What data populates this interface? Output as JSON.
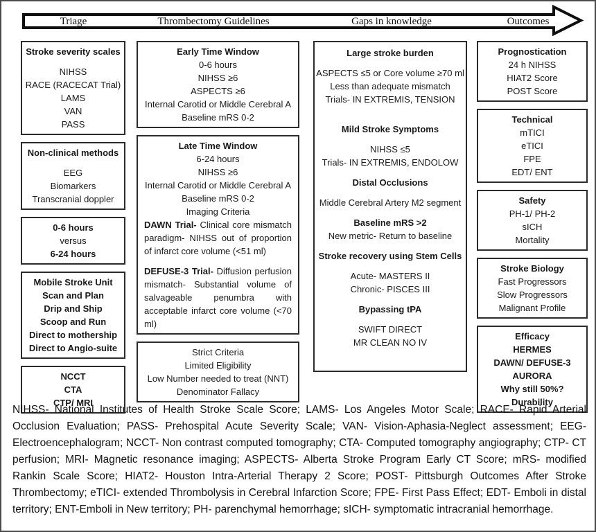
{
  "colors": {
    "ink": "#1a1a1a",
    "border": "#2b2b2b"
  },
  "header": {
    "labels": [
      "Triage",
      "Thrombectomy Guidelines",
      "Gaps in knowledge",
      "Outcomes"
    ]
  },
  "columns": [
    {
      "id": "triage",
      "boxes": [
        {
          "name": "stroke-severity-scales-box",
          "lines": [
            {
              "t": "Stroke severity scales",
              "b": true
            },
            {
              "t": "NIHSS",
              "g": 1
            },
            {
              "t": "RACE (RACECAT Trial)"
            },
            {
              "t": "LAMS"
            },
            {
              "t": "VAN"
            },
            {
              "t": "PASS"
            }
          ]
        },
        {
          "name": "non-clinical-methods-box",
          "lines": [
            {
              "t": "Non-clinical methods",
              "b": true
            },
            {
              "t": "EEG",
              "g": 1
            },
            {
              "t": "Biomarkers"
            },
            {
              "t": "Transcranial doppler"
            }
          ]
        },
        {
          "name": "time-window-comparison-box",
          "lines": [
            {
              "t": "0-6 hours",
              "b": true
            },
            {
              "t": "versus"
            },
            {
              "t": "6-24 hours",
              "b": true
            }
          ]
        },
        {
          "name": "transport-strategies-box",
          "lines": [
            {
              "t": "Mobile Stroke Unit",
              "b": true
            },
            {
              "t": "Scan and Plan",
              "b": true
            },
            {
              "t": "Drip and Ship",
              "b": true
            },
            {
              "t": "Scoop and Run",
              "b": true
            },
            {
              "t": "Direct to mothership",
              "b": true
            },
            {
              "t": "Direct to Angio-suite",
              "b": true
            }
          ]
        },
        {
          "name": "imaging-modalities-box",
          "lines": [
            {
              "t": "NCCT",
              "b": true
            },
            {
              "t": "CTA",
              "b": true
            },
            {
              "t": "CTP/ MRI",
              "b": true
            }
          ]
        }
      ]
    },
    {
      "id": "guidelines",
      "boxes": [
        {
          "name": "early-time-window-box",
          "lines": [
            {
              "t": "Early Time Window",
              "b": true
            },
            {
              "t": "0-6 hours"
            },
            {
              "t": "NIHSS ≥6"
            },
            {
              "t": "ASPECTS ≥6"
            },
            {
              "t": "Internal Carotid or Middle Cerebral A"
            },
            {
              "t": "Baseline mRS 0-2"
            }
          ]
        },
        {
          "name": "late-time-window-box",
          "lines": [
            {
              "t": "Late Time Window",
              "b": true
            },
            {
              "t": "6-24 hours"
            },
            {
              "t": "NIHSS ≥6"
            },
            {
              "t": "Internal Carotid or Middle Cerebral A"
            },
            {
              "t": "Baseline mRS 0-2"
            },
            {
              "t": "Imaging Criteria"
            },
            {
              "para": true,
              "lead": "DAWN Trial-",
              "t": "Clinical core mismatch paradigm- NIHSS out of proportion of infarct core volume (<51 ml)"
            },
            {
              "para": true,
              "lead": "DEFUSE-3 Trial-",
              "t": "Diffusion perfusion mismatch- Substantial volume of salvageable penumbra with acceptable infarct core volume (<70 ml)",
              "g": 1
            }
          ]
        },
        {
          "name": "criteria-limitations-box",
          "lines": [
            {
              "t": "Strict Criteria"
            },
            {
              "t": "Limited Eligibility"
            },
            {
              "t": "Low Number needed to treat (NNT)"
            },
            {
              "t": "Denominator Fallacy"
            }
          ]
        }
      ]
    },
    {
      "id": "gaps",
      "boxes": [
        {
          "name": "knowledge-gaps-box",
          "tall": true,
          "lines": [
            {
              "t": "Large stroke burden",
              "b": true
            },
            {
              "t": "ASPECTS ≤5 or Core volume ≥70 ml",
              "g": 1
            },
            {
              "t": "Less than adequate mismatch"
            },
            {
              "t": "Trials- IN EXTREMIS, TENSION"
            },
            {
              "t": "Mild Stroke Symptoms",
              "b": true,
              "g": 2
            },
            {
              "t": "NIHSS ≤5",
              "g": 1
            },
            {
              "t": "Trials- IN EXTREMIS, ENDOLOW"
            },
            {
              "t": "Distal Occlusions",
              "b": true,
              "g": 1
            },
            {
              "t": "Middle Cerebral Artery M2 segment",
              "g": 1
            },
            {
              "t": "Baseline mRS >2",
              "b": true,
              "g": 1
            },
            {
              "t": "New metric- Return to baseline"
            },
            {
              "t": "Stroke recovery using Stem Cells",
              "b": true,
              "g": 1
            },
            {
              "t": "Acute- MASTERS II",
              "g": 1
            },
            {
              "t": "Chronic- PISCES III"
            },
            {
              "t": "Bypassing tPA",
              "b": true,
              "g": 1
            },
            {
              "t": "SWIFT DIRECT",
              "g": 1
            },
            {
              "t": "MR CLEAN NO IV"
            }
          ]
        }
      ]
    },
    {
      "id": "outcomes",
      "boxes": [
        {
          "name": "prognostication-box",
          "lines": [
            {
              "t": "Prognostication",
              "b": true
            },
            {
              "t": "24 h NIHSS"
            },
            {
              "t": "HIAT2 Score"
            },
            {
              "t": "POST Score"
            }
          ]
        },
        {
          "name": "technical-outcomes-box",
          "lines": [
            {
              "t": "Technical",
              "b": true
            },
            {
              "t": "mTICI"
            },
            {
              "t": "eTICI"
            },
            {
              "t": "FPE"
            },
            {
              "t": "EDT/ ENT"
            }
          ]
        },
        {
          "name": "safety-outcomes-box",
          "lines": [
            {
              "t": "Safety",
              "b": true
            },
            {
              "t": "PH-1/ PH-2"
            },
            {
              "t": "sICH"
            },
            {
              "t": "Mortality"
            }
          ]
        },
        {
          "name": "stroke-biology-box",
          "lines": [
            {
              "t": "Stroke Biology",
              "b": true
            },
            {
              "t": "Fast Progressors"
            },
            {
              "t": "Slow Progressors"
            },
            {
              "t": "Malignant Profile"
            }
          ]
        },
        {
          "name": "efficacy-box",
          "lines": [
            {
              "t": "Efficacy",
              "b": true
            },
            {
              "t": "HERMES",
              "b": true
            },
            {
              "t": "DAWN/ DEFUSE-3",
              "b": true
            },
            {
              "t": "AURORA",
              "b": true
            },
            {
              "t": "Why still 50%?",
              "b": true
            },
            {
              "t": "Durability",
              "b": true
            }
          ]
        }
      ]
    }
  ],
  "legend": "NIHSS- National Institutes of Health Stroke Scale Score; LAMS- Los Angeles Motor Scale; RACE- Rapid Arterial Occlusion Evaluation; PASS- Prehospital Acute Severity Scale; VAN- Vision-Aphasia-Neglect assessment; EEG- Electroencephalogram; NCCT- Non contrast computed tomography; CTA- Computed tomography angiography; CTP- CT perfusion; MRI- Magnetic resonance imaging; ASPECTS- Alberta Stroke Program Early CT Score; mRS- modified Rankin Scale Score; HIAT2- Houston Intra-Arterial Therapy 2 Score; POST- Pittsburgh Outcomes After Stroke Thrombectomy; eTICI- extended Thrombolysis in Cerebral Infarction Score; FPE- First Pass Effect; EDT- Emboli in distal territory; ENT-Emboli in New territory; PH- parenchymal hemorrhage; sICH- symptomatic intracranial hemorrhage."
}
